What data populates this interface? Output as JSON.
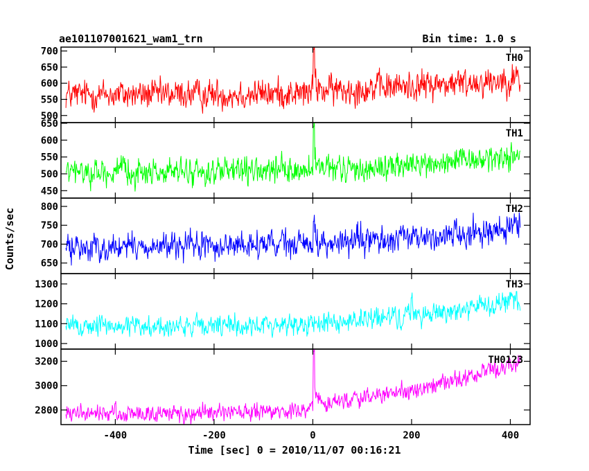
{
  "header": {
    "file_label": "ae101107001621_wam1_trn",
    "bin_time": "Bin time: 1.0 s"
  },
  "axes": {
    "xlabel": "Time [sec] 0 = 2010/11/07 00:16:21",
    "ylabel": "Counts/sec"
  },
  "chart_data": {
    "type": "line",
    "title": "ae101107001621_wam1_trn",
    "xlabel": "Time [sec] 0 = 2010/11/07 00:16:21",
    "ylabel": "Counts/sec",
    "xlim": [
      -510,
      440
    ],
    "x_range": [
      -500,
      420
    ],
    "x_step": 1.0,
    "x_ticks": [
      -400,
      -200,
      0,
      200,
      400
    ],
    "panels": [
      {
        "name": "TH0",
        "color": "#ff0000",
        "ylim": [
          478,
          712
        ],
        "y_ticks": [
          500,
          550,
          600,
          650,
          700
        ],
        "trend": [
          [
            -500,
            565
          ],
          [
            -200,
            565
          ],
          [
            -10,
            570
          ],
          [
            0,
            575
          ],
          [
            120,
            585
          ],
          [
            300,
            600
          ],
          [
            420,
            615
          ]
        ],
        "noise": 36,
        "spike": {
          "x": 2,
          "value": 705
        }
      },
      {
        "name": "TH1",
        "color": "#00ff00",
        "ylim": [
          428,
          652
        ],
        "y_ticks": [
          450,
          500,
          550,
          600,
          650
        ],
        "trend": [
          [
            -500,
            505
          ],
          [
            -200,
            505
          ],
          [
            0,
            510
          ],
          [
            100,
            515
          ],
          [
            300,
            535
          ],
          [
            420,
            555
          ]
        ],
        "noise": 30,
        "spike": {
          "x": 2,
          "value": 640
        }
      },
      {
        "name": "TH2",
        "color": "#0000ff",
        "ylim": [
          622,
          822
        ],
        "y_ticks": [
          650,
          700,
          750,
          800
        ],
        "trend": [
          [
            -500,
            690
          ],
          [
            -200,
            695
          ],
          [
            0,
            700
          ],
          [
            200,
            715
          ],
          [
            420,
            745
          ]
        ],
        "noise": 28,
        "spike": {
          "x": 2,
          "value": 760
        }
      },
      {
        "name": "TH3",
        "color": "#00ffff",
        "ylim": [
          972,
          1352
        ],
        "y_ticks": [
          1000,
          1100,
          1200,
          1300
        ],
        "trend": [
          [
            -500,
            1090
          ],
          [
            -200,
            1085
          ],
          [
            0,
            1100
          ],
          [
            200,
            1140
          ],
          [
            420,
            1210
          ]
        ],
        "noise": 42,
        "spike": {
          "x": 200,
          "value": 1230
        }
      },
      {
        "name": "TH0123",
        "color": "#ff00ff",
        "ylim": [
          2680,
          3300
        ],
        "y_ticks": [
          2800,
          3000,
          3200
        ],
        "trend": [
          [
            -500,
            2770
          ],
          [
            -200,
            2770
          ],
          [
            -10,
            2790
          ],
          [
            0,
            2850
          ],
          [
            200,
            2950
          ],
          [
            340,
            3100
          ],
          [
            420,
            3200
          ]
        ],
        "noise": 55,
        "spike": {
          "x": 2,
          "value": 3280
        }
      }
    ]
  }
}
